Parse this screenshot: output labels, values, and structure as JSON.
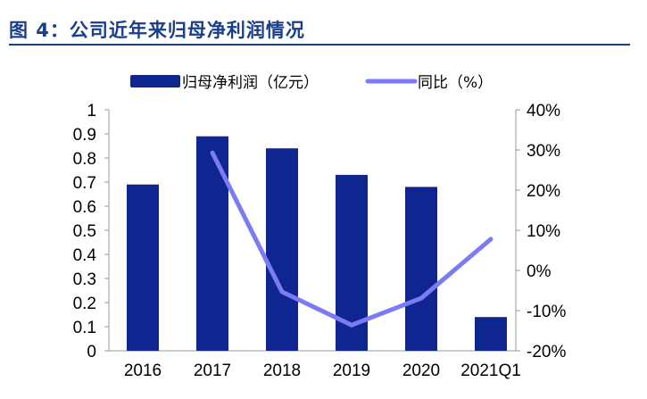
{
  "title": "图 4：公司近年来归母净利润情况",
  "chart_data": {
    "type": "bar+line",
    "categories": [
      "2016",
      "2017",
      "2018",
      "2019",
      "2020",
      "2021Q1"
    ],
    "series": [
      {
        "name": "归母净利润（亿元）",
        "type": "bar",
        "axis": "left",
        "color": "#0f2590",
        "values": [
          0.69,
          0.89,
          0.84,
          0.73,
          0.68,
          0.14
        ]
      },
      {
        "name": "同比（%）",
        "type": "line",
        "axis": "right",
        "color": "#7b7bf5",
        "values": [
          null,
          29.3,
          -5.3,
          -13.6,
          -6.9,
          7.8
        ]
      }
    ],
    "left_axis": {
      "range": [
        0,
        1
      ],
      "ticks": [
        "0",
        "0.1",
        "0.2",
        "0.3",
        "0.4",
        "0.5",
        "0.6",
        "0.7",
        "0.8",
        "0.9",
        "1"
      ]
    },
    "right_axis": {
      "range": [
        -20,
        40
      ],
      "ticks": [
        "-20%",
        "-10%",
        "0%",
        "10%",
        "20%",
        "30%",
        "40%"
      ]
    },
    "legend": "top-center",
    "grid": false
  }
}
